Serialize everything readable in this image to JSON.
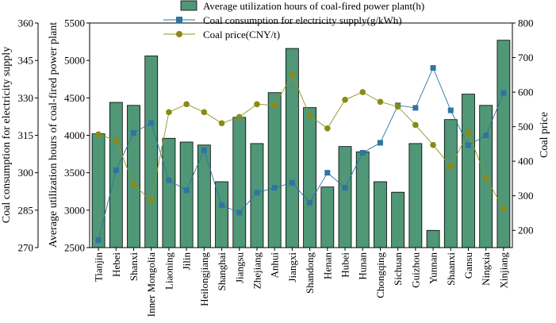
{
  "chart_data": {
    "type": "bar-line-combo",
    "categories": [
      "Tianjin",
      "Hebei",
      "Shanxi",
      "Inner Mongolia",
      "Liaoning",
      "Jilin",
      "Heilongjiang",
      "Shanghai",
      "Jiangsu",
      "Zhejiang",
      "Anhui",
      "Jiangxi",
      "Shandong",
      "Henan",
      "Hubei",
      "Hunan",
      "Chongqing",
      "Sichuan",
      "Guizhou",
      "Yunnan",
      "Shaanxi",
      "Gansu",
      "Ningxia",
      "Xinjiang"
    ],
    "series": [
      {
        "name": "Average utilization hours of coal-fired power plant(h)",
        "type": "bar",
        "axis": "left-inner",
        "color": "#4f9777",
        "values": [
          4020,
          4440,
          4400,
          5060,
          3960,
          3910,
          3870,
          3380,
          4240,
          3890,
          4570,
          5160,
          4370,
          3310,
          3850,
          3780,
          3380,
          3240,
          3890,
          2730,
          4210,
          4550,
          4400,
          5270
        ]
      },
      {
        "name": "Coal consumption for electricity supply(g/kWh)",
        "type": "line",
        "axis": "left-outer",
        "color": "#2e74a3",
        "values": [
          273,
          301,
          316,
          320,
          297,
          293,
          309,
          287,
          284,
          292,
          294,
          296,
          288,
          300,
          294,
          308,
          312,
          327,
          326,
          342,
          325,
          311,
          315,
          332
        ]
      },
      {
        "name": "Coal price(CNY/t)",
        "type": "line",
        "axis": "right",
        "color": "#8a9a1f",
        "values": [
          478,
          460,
          333,
          285,
          542,
          565,
          542,
          510,
          528,
          565,
          562,
          650,
          532,
          495,
          578,
          600,
          572,
          558,
          505,
          447,
          385,
          483,
          352,
          263
        ]
      }
    ],
    "axes": {
      "left_outer": {
        "label": "Coal consumption for electricity supply",
        "range": [
          270,
          360
        ],
        "ticks": [
          270,
          285,
          300,
          315,
          330,
          345,
          360
        ]
      },
      "left_inner": {
        "label": "Average utilization hours of coal-fired power plant",
        "range": [
          2500,
          5500
        ],
        "ticks": [
          2500,
          3000,
          3500,
          4000,
          4500,
          5000,
          5500
        ]
      },
      "right": {
        "label": "Coal price",
        "range": [
          150,
          800
        ],
        "ticks": [
          200,
          300,
          400,
          500,
          600,
          700,
          800
        ]
      }
    },
    "legend": {
      "position": "top-center",
      "entries": [
        "Average utilization hours of coal-fired power plant(h)",
        "Coal consumption for electricity supply(g/kWh)",
        "Coal price(CNY/t)"
      ]
    }
  }
}
